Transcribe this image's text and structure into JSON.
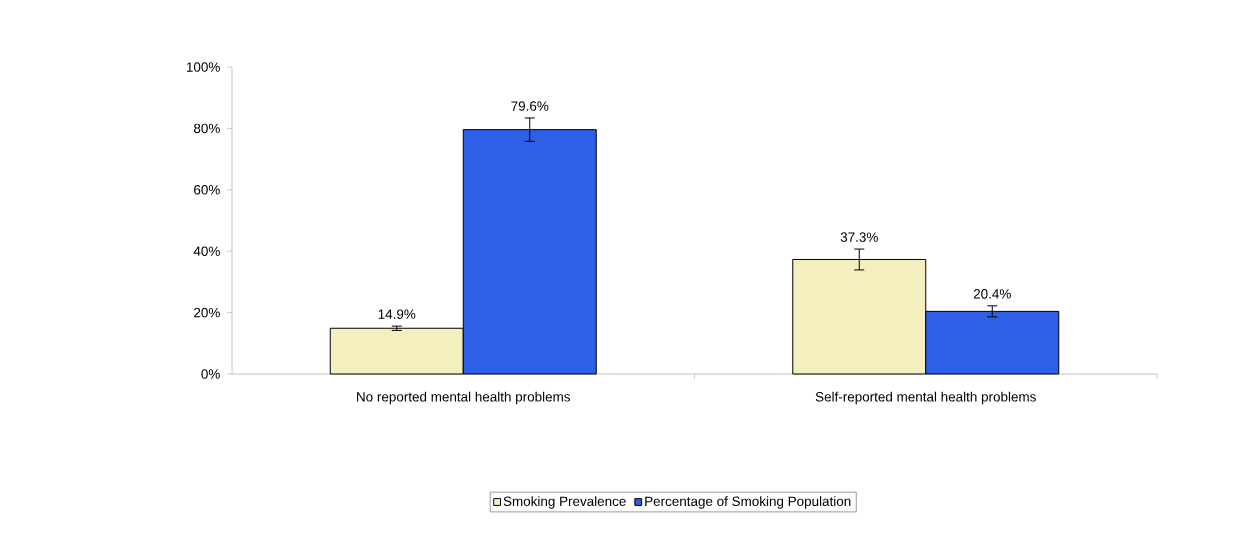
{
  "chart_data": {
    "type": "bar",
    "categories": [
      "No reported mental health problems",
      "Self-reported mental health problems"
    ],
    "series": [
      {
        "name": "Smoking Prevalence",
        "color": "#f3efbf",
        "values": [
          14.9,
          37.3
        ],
        "errors": [
          0.7,
          3.4
        ],
        "value_labels": [
          "14.9%",
          "37.3%"
        ]
      },
      {
        "name": "Percentage of Smoking Population",
        "color": "#2f5fe6",
        "values": [
          79.6,
          20.4
        ],
        "errors": [
          3.8,
          1.8
        ],
        "value_labels": [
          "79.6%",
          "20.4%"
        ]
      }
    ],
    "ylim": [
      0,
      100
    ],
    "yticks": [
      {
        "value": 0,
        "label": "0%"
      },
      {
        "value": 20,
        "label": "20%"
      },
      {
        "value": 40,
        "label": "40%"
      },
      {
        "value": 60,
        "label": "60%"
      },
      {
        "value": 80,
        "label": "80%"
      },
      {
        "value": 100,
        "label": "100%"
      }
    ],
    "grid": false,
    "legend": "bottom"
  }
}
